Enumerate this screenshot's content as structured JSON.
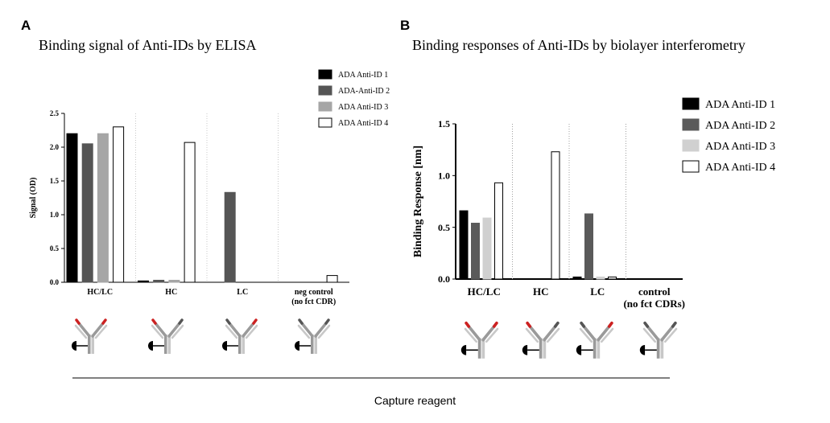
{
  "panels": [
    {
      "letter": "A",
      "title": "Binding signal of Anti-IDs by ELISA"
    },
    {
      "letter": "B",
      "title": "Binding responses of Anti-IDs by biolayer interferometry"
    }
  ],
  "capture_label": "Capture reagent",
  "colors": {
    "series1": "#000000",
    "series2": "#555555",
    "series3": "#a6a6a6",
    "series4": "#ffffff"
  },
  "chart_data": [
    {
      "type": "bar",
      "title": "Binding signal of Anti-IDs by ELISA",
      "ylabel": "Signal (OD)",
      "xlabel": "",
      "ylim": [
        0,
        2.5
      ],
      "yticks": [
        "0.0",
        "0.5",
        "1.0",
        "1.5",
        "2.0",
        "2.5"
      ],
      "categories": [
        [
          "HC/LC"
        ],
        [
          "HC"
        ],
        [
          "LC"
        ],
        [
          "neg control",
          "(no fct CDR)"
        ]
      ],
      "legend_position": "top-right",
      "series": [
        {
          "name": "ADA Anti-ID 1",
          "color": "#000000",
          "values": [
            2.2,
            0.02,
            0,
            0
          ]
        },
        {
          "name": "ADA-Anti-ID 2",
          "color": "#555555",
          "values": [
            2.05,
            0.03,
            1.33,
            0
          ]
        },
        {
          "name": "ADA Anti-ID 3",
          "color": "#a6a6a6",
          "values": [
            2.2,
            0.03,
            0,
            0
          ]
        },
        {
          "name": "ADA Anti-ID 4",
          "color": "#ffffff",
          "values": [
            2.3,
            2.07,
            0,
            0.1
          ]
        }
      ]
    },
    {
      "type": "bar",
      "title": "Binding responses of Anti-IDs by biolayer interferometry",
      "ylabel": "Binding Response [nm]",
      "xlabel": "",
      "ylim": [
        0,
        1.5
      ],
      "yticks": [
        "0.0",
        "0.5",
        "1.0",
        "1.5"
      ],
      "categories": [
        [
          "HC/LC"
        ],
        [
          "HC"
        ],
        [
          "LC"
        ],
        [
          "control",
          "(no fct CDRs)"
        ]
      ],
      "legend_position": "right",
      "series": [
        {
          "name": "ADA Anti-ID 1",
          "color": "#000000",
          "values": [
            0.66,
            0,
            0.02,
            0
          ]
        },
        {
          "name": "ADA Anti-ID 2",
          "color": "#5a5a5a",
          "values": [
            0.54,
            0,
            0.63,
            0
          ]
        },
        {
          "name": "ADA Anti-ID 3",
          "color": "#d0d0d0",
          "values": [
            0.59,
            0,
            0.02,
            0
          ]
        },
        {
          "name": "ADA Anti-ID 4",
          "color": "#ffffff",
          "values": [
            0.93,
            1.23,
            0.02,
            0
          ]
        }
      ]
    }
  ]
}
